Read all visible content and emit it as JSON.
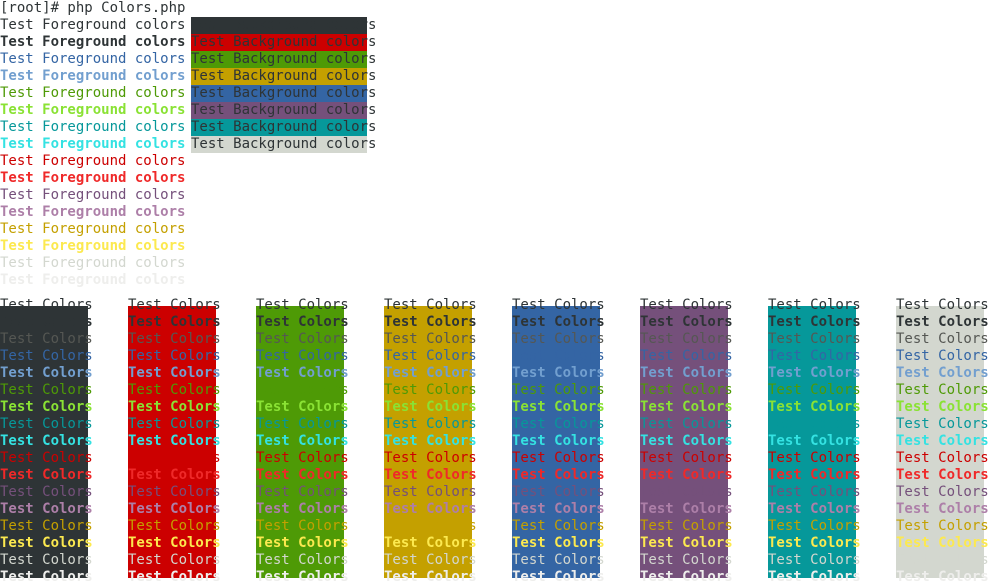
{
  "prompt": "[root]# php Colors.php",
  "fg_text": "Test Foreground colors",
  "bg_text": "Test Background colors",
  "cell_text": "Test Colors",
  "foreground_lines": [
    {
      "color": "#2e3436",
      "bold": false
    },
    {
      "color": "#2e3436",
      "bold": true
    },
    {
      "color": "#3465a4",
      "bold": false
    },
    {
      "color": "#729fcf",
      "bold": true
    },
    {
      "color": "#4e9a06",
      "bold": false
    },
    {
      "color": "#8ae234",
      "bold": true
    },
    {
      "color": "#06989a",
      "bold": false
    },
    {
      "color": "#34e2e2",
      "bold": true
    },
    {
      "color": "#cc0000",
      "bold": false
    },
    {
      "color": "#ef2929",
      "bold": true
    },
    {
      "color": "#75507b",
      "bold": false
    },
    {
      "color": "#ad7fa8",
      "bold": true
    },
    {
      "color": "#c4a000",
      "bold": false
    },
    {
      "color": "#fce94f",
      "bold": true
    },
    {
      "color": "#d3d7cf",
      "bold": false
    },
    {
      "color": "#eeeeec",
      "bold": true
    }
  ],
  "background_lines": [
    {
      "bg": "#2e3436"
    },
    {
      "bg": "#cc0000"
    },
    {
      "bg": "#4e9a06"
    },
    {
      "bg": "#c4a000"
    },
    {
      "bg": "#3465a4"
    },
    {
      "bg": "#75507b"
    },
    {
      "bg": "#06989a"
    },
    {
      "bg": "#d3d7cf"
    }
  ],
  "block_backgrounds": [
    "#2e3436",
    "#cc0000",
    "#4e9a06",
    "#c4a000",
    "#3465a4",
    "#75507b",
    "#06989a",
    "#d3d7cf"
  ],
  "block_rows": [
    {
      "color": "#2e3436",
      "bold": false
    },
    {
      "color": "#2e3436",
      "bold": true
    },
    {
      "color": "#555753",
      "bold": false
    },
    {
      "color": "#3465a4",
      "bold": false
    },
    {
      "color": "#729fcf",
      "bold": true
    },
    {
      "color": "#4e9a06",
      "bold": false
    },
    {
      "color": "#8ae234",
      "bold": true
    },
    {
      "color": "#06989a",
      "bold": false
    },
    {
      "color": "#34e2e2",
      "bold": true
    },
    {
      "color": "#cc0000",
      "bold": false
    },
    {
      "color": "#ef2929",
      "bold": true
    },
    {
      "color": "#75507b",
      "bold": false
    },
    {
      "color": "#ad7fa8",
      "bold": true
    },
    {
      "color": "#c4a000",
      "bold": false
    },
    {
      "color": "#fce94f",
      "bold": true
    },
    {
      "color": "#d3d7cf",
      "bold": false
    },
    {
      "color": "#eeeeec",
      "bold": true
    }
  ]
}
